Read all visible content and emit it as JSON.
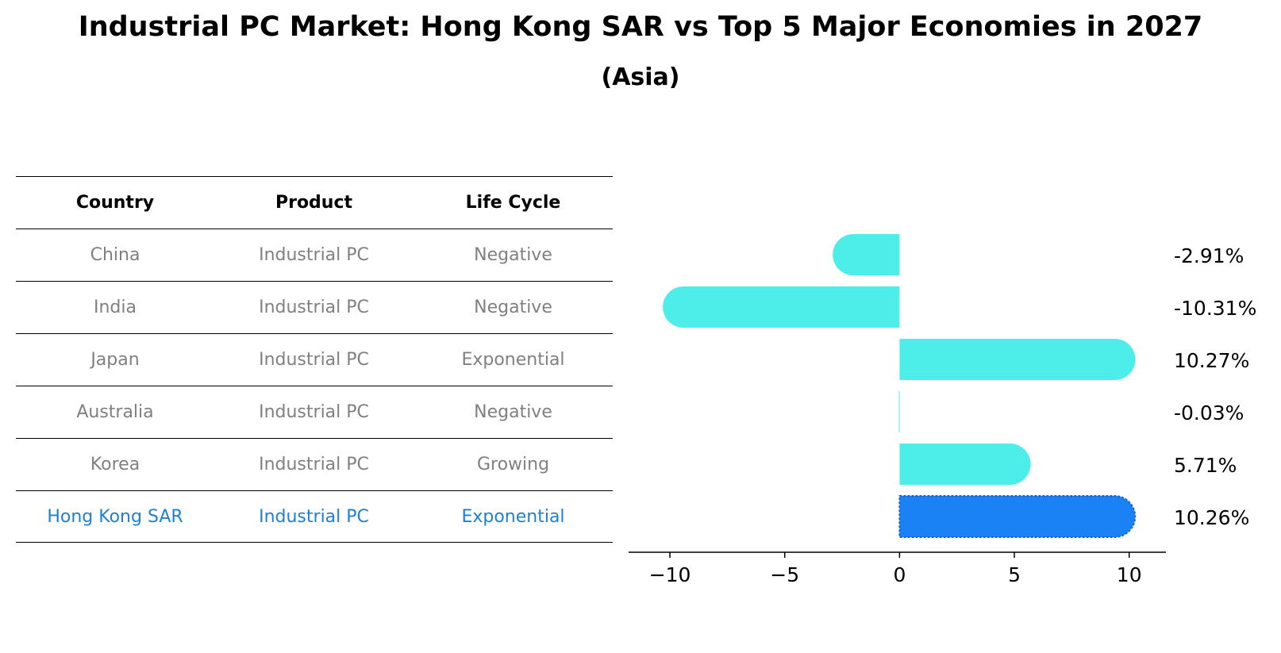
{
  "title": "Industrial PC Market: Hong Kong SAR vs Top 5 Major Economies in 2027",
  "subtitle": "(Asia)",
  "table": {
    "headers": [
      "Country",
      "Product",
      "Life Cycle"
    ],
    "rows": [
      [
        "China",
        "Industrial PC",
        "Negative"
      ],
      [
        "India",
        "Industrial PC",
        "Negative"
      ],
      [
        "Japan",
        "Industrial PC",
        "Exponential"
      ],
      [
        "Australia",
        "Industrial PC",
        "Negative"
      ],
      [
        "Korea",
        "Industrial PC",
        "Growing"
      ],
      [
        "Hong Kong SAR",
        "Industrial PC",
        "Exponential"
      ]
    ],
    "highlight_row": 5
  },
  "chart_data": {
    "type": "bar",
    "orientation": "horizontal",
    "categories": [
      "China",
      "India",
      "Japan",
      "Australia",
      "Korea",
      "Hong Kong SAR"
    ],
    "values": [
      -2.91,
      -10.31,
      10.27,
      -0.03,
      5.71,
      10.26
    ],
    "labels": [
      "-2.91%",
      "-10.31%",
      "10.27%",
      "-0.03%",
      "5.71%",
      "10.26%"
    ],
    "xlim": [
      -11.8,
      11.6
    ],
    "xticks": [
      -10,
      -5,
      0,
      5,
      10
    ],
    "xtick_labels": [
      "−10",
      "−5",
      "0",
      "5",
      "10"
    ],
    "colors": {
      "default": "#4deeea",
      "highlight": "#1a82f5"
    },
    "highlight_index": 5
  }
}
